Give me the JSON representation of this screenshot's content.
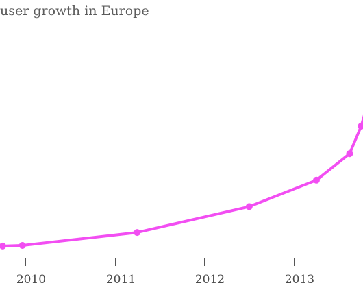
{
  "chart_data": {
    "type": "line",
    "title": "user growth in Europe",
    "xlabel": "",
    "ylabel": "",
    "x_ticks": [
      "2010",
      "2011",
      "2012",
      "2013"
    ],
    "xlim": [
      2009.72,
      2013.77
    ],
    "ylim": [
      0,
      400
    ],
    "y_gridlines": [
      0,
      100,
      200,
      300,
      400
    ],
    "grid": true,
    "legend": "none",
    "series": [
      {
        "color": "#f24ef2",
        "points": [
          {
            "x": 2009.75,
            "y": 20
          },
          {
            "x": 2009.97,
            "y": 21
          },
          {
            "x": 2011.25,
            "y": 43
          },
          {
            "x": 2012.5,
            "y": 87
          },
          {
            "x": 2013.25,
            "y": 132
          },
          {
            "x": 2013.62,
            "y": 177
          },
          {
            "x": 2013.75,
            "y": 224
          }
        ]
      }
    ]
  }
}
